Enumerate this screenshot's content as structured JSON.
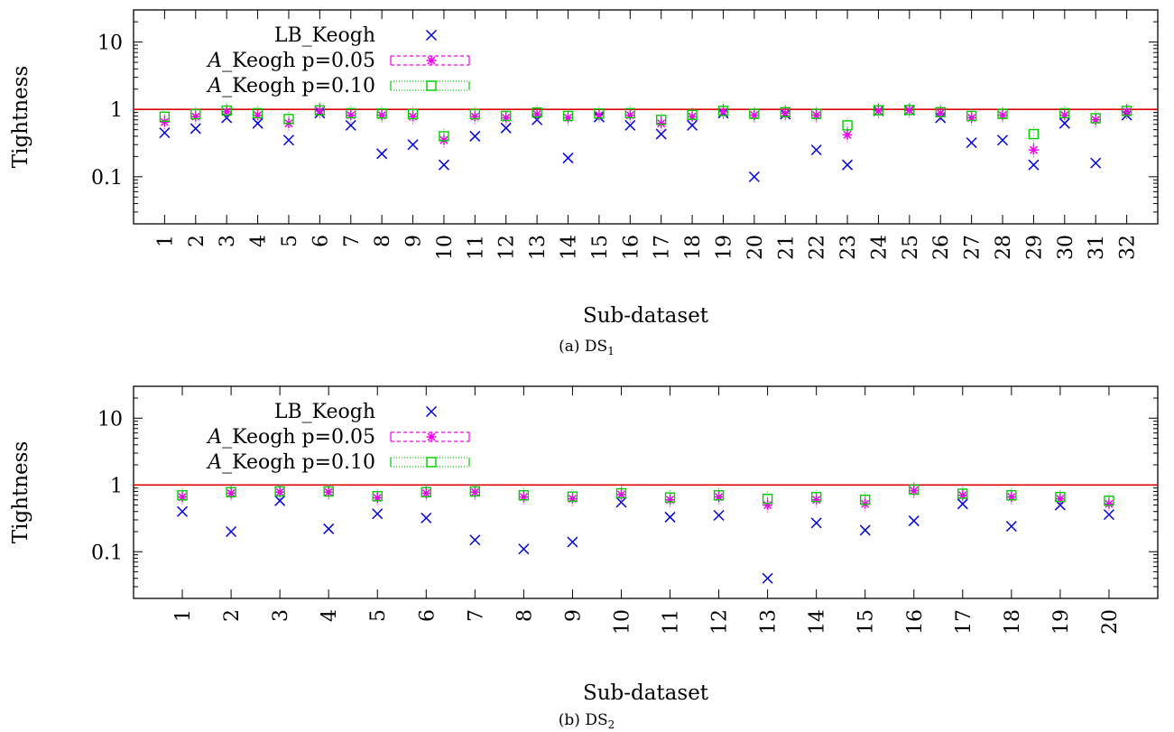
{
  "chart_data": [
    {
      "type": "scatter",
      "subplot": "a",
      "caption": "(a) DS",
      "caption_sub": "1",
      "xlabel": "Sub-dataset",
      "ylabel": "Tightness",
      "yscale": "log",
      "ylim": [
        0.02,
        30
      ],
      "yticks": [
        "10",
        "1",
        "0.1"
      ],
      "categories": [
        "1",
        "2",
        "3",
        "4",
        "5",
        "6",
        "7",
        "8",
        "9",
        "10",
        "11",
        "12",
        "13",
        "14",
        "15",
        "16",
        "17",
        "18",
        "19",
        "20",
        "21",
        "22",
        "23",
        "24",
        "25",
        "26",
        "27",
        "28",
        "29",
        "30",
        "31",
        "32"
      ],
      "reference_line": {
        "y": 1,
        "color": "#dd0000"
      },
      "legend_position": "top-left",
      "series": [
        {
          "name": "LB_Keogh",
          "marker": "x",
          "color": "#0000dd",
          "values": [
            0.45,
            0.52,
            0.75,
            0.62,
            0.35,
            0.88,
            0.58,
            0.22,
            0.3,
            0.15,
            0.4,
            0.53,
            0.7,
            0.19,
            0.77,
            0.58,
            0.43,
            0.58,
            0.88,
            0.1,
            0.85,
            0.25,
            0.15,
            0.95,
            0.97,
            0.75,
            0.32,
            0.35,
            0.15,
            0.62,
            0.16,
            0.82
          ]
        },
        {
          "name": "Keogh p=0.05",
          "name_prefix": "A",
          "marker": "star",
          "color": "#ee00ee",
          "values": [
            0.65,
            0.78,
            0.92,
            0.82,
            0.62,
            0.95,
            0.82,
            0.82,
            0.78,
            0.35,
            0.78,
            0.75,
            0.85,
            0.75,
            0.82,
            0.82,
            0.62,
            0.78,
            0.92,
            0.82,
            0.88,
            0.82,
            0.42,
            0.95,
            0.97,
            0.88,
            0.75,
            0.82,
            0.25,
            0.82,
            0.7,
            0.92
          ]
        },
        {
          "name": "Keogh p=0.10",
          "name_prefix": "A",
          "marker": "square",
          "color": "#00cc00",
          "values": [
            0.78,
            0.85,
            0.96,
            0.88,
            0.72,
            0.97,
            0.88,
            0.87,
            0.85,
            0.4,
            0.85,
            0.8,
            0.9,
            0.8,
            0.87,
            0.88,
            0.7,
            0.83,
            0.95,
            0.86,
            0.91,
            0.86,
            0.58,
            0.97,
            0.98,
            0.91,
            0.8,
            0.86,
            0.43,
            0.88,
            0.74,
            0.95
          ]
        }
      ]
    },
    {
      "type": "scatter",
      "subplot": "b",
      "caption": "(b) DS",
      "caption_sub": "2",
      "xlabel": "Sub-dataset",
      "ylabel": "Tightness",
      "yscale": "log",
      "ylim": [
        0.02,
        30
      ],
      "yticks": [
        "10",
        "1",
        "0.1"
      ],
      "categories": [
        "1",
        "2",
        "3",
        "4",
        "5",
        "6",
        "7",
        "8",
        "9",
        "10",
        "11",
        "12",
        "13",
        "14",
        "15",
        "16",
        "17",
        "18",
        "19",
        "20"
      ],
      "reference_line": {
        "y": 1,
        "color": "#dd0000"
      },
      "legend_position": "top-left",
      "series": [
        {
          "name": "LB_Keogh",
          "marker": "x",
          "color": "#0000dd",
          "values": [
            0.4,
            0.2,
            0.58,
            0.22,
            0.37,
            0.32,
            0.15,
            0.11,
            0.14,
            0.55,
            0.33,
            0.35,
            0.04,
            0.27,
            0.21,
            0.29,
            0.52,
            0.24,
            0.5,
            0.36
          ]
        },
        {
          "name": "Keogh p=0.05",
          "name_prefix": "A",
          "marker": "star",
          "color": "#ee00ee",
          "values": [
            0.66,
            0.75,
            0.78,
            0.78,
            0.64,
            0.75,
            0.78,
            0.66,
            0.62,
            0.72,
            0.6,
            0.66,
            0.5,
            0.6,
            0.52,
            0.82,
            0.7,
            0.66,
            0.62,
            0.52
          ]
        },
        {
          "name": "Keogh p=0.10",
          "name_prefix": "A",
          "marker": "square",
          "color": "#00cc00",
          "values": [
            0.7,
            0.78,
            0.8,
            0.8,
            0.68,
            0.78,
            0.8,
            0.7,
            0.67,
            0.75,
            0.65,
            0.7,
            0.62,
            0.66,
            0.6,
            0.85,
            0.74,
            0.7,
            0.66,
            0.58
          ]
        }
      ]
    }
  ]
}
